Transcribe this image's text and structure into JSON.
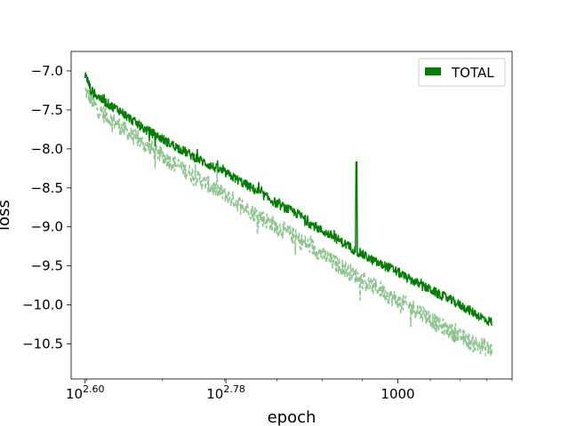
{
  "chart_data": {
    "type": "line",
    "title": "",
    "xlabel": "epoch",
    "ylabel": "loss",
    "xscale": "log",
    "xlim": [
      382,
      1400
    ],
    "ylim": [
      -10.95,
      -6.75
    ],
    "grid": false,
    "legend_placement": "top-right",
    "legend": [
      {
        "label": "TOTAL",
        "color": "#008000"
      }
    ],
    "x_ticks": [
      {
        "value": 398.1,
        "label": "10^2.60",
        "base": "10",
        "exp": "2.60"
      },
      {
        "value": 602.6,
        "label": "10^2.78",
        "base": "10",
        "exp": "2.78"
      },
      {
        "value": 1000,
        "label": "1000",
        "base": "1000",
        "exp": ""
      }
    ],
    "y_ticks": [
      -7.0,
      -7.5,
      -8.0,
      -8.5,
      -9.0,
      -9.5,
      -10.0,
      -10.5
    ],
    "y_tick_labels": [
      "−7.0",
      "−7.5",
      "−8.0",
      "−8.5",
      "−9.0",
      "−9.5",
      "−10.0",
      "−10.5"
    ],
    "series": [
      {
        "name": "TOTAL",
        "style": "solid",
        "color": "#008000",
        "opacity": 1.0,
        "x": [
          398,
          402,
          405,
          410,
          420,
          430,
          440,
          450,
          460,
          475,
          490,
          505,
          520,
          540,
          560,
          580,
          600,
          625,
          650,
          675,
          700,
          725,
          750,
          760,
          770,
          780,
          800,
          825,
          850,
          875,
          900,
          925,
          950,
          975,
          1000,
          1025,
          1050,
          1075,
          1100,
          1125,
          1150,
          1175,
          1200,
          1225,
          1250,
          1275,
          1300,
          1320
        ],
        "y": [
          -7.05,
          -7.15,
          -7.25,
          -7.3,
          -7.38,
          -7.45,
          -7.5,
          -7.58,
          -7.65,
          -7.75,
          -7.82,
          -7.9,
          -7.97,
          -8.06,
          -8.15,
          -8.23,
          -8.3,
          -8.4,
          -8.5,
          -8.6,
          -8.7,
          -8.78,
          -8.85,
          -8.9,
          -8.95,
          -8.98,
          -9.05,
          -9.12,
          -9.2,
          -9.28,
          -9.35,
          -9.42,
          -9.48,
          -9.52,
          -9.58,
          -9.65,
          -9.7,
          -9.76,
          -9.8,
          -9.86,
          -9.9,
          -9.95,
          -10.0,
          -10.05,
          -10.1,
          -10.15,
          -10.2,
          -10.22
        ],
        "noise": 0.06
      },
      {
        "name": "",
        "style": "dashed",
        "color": "#008000",
        "opacity": 0.45,
        "x": [
          398,
          402,
          405,
          410,
          420,
          430,
          440,
          450,
          460,
          475,
          490,
          505,
          520,
          540,
          560,
          580,
          600,
          625,
          650,
          675,
          700,
          725,
          750,
          775,
          800,
          825,
          850,
          875,
          900,
          925,
          950,
          975,
          1000,
          1025,
          1050,
          1075,
          1100,
          1125,
          1150,
          1175,
          1200,
          1225,
          1250,
          1275,
          1300,
          1320
        ],
        "y": [
          -7.25,
          -7.3,
          -7.38,
          -7.45,
          -7.55,
          -7.62,
          -7.7,
          -7.78,
          -7.85,
          -7.95,
          -8.03,
          -8.12,
          -8.2,
          -8.3,
          -8.4,
          -8.5,
          -8.58,
          -8.7,
          -8.8,
          -8.9,
          -9.0,
          -9.08,
          -9.18,
          -9.25,
          -9.35,
          -9.45,
          -9.52,
          -9.6,
          -9.68,
          -9.75,
          -9.8,
          -9.88,
          -9.95,
          -10.0,
          -10.05,
          -10.1,
          -10.18,
          -10.25,
          -10.3,
          -10.35,
          -10.4,
          -10.45,
          -10.5,
          -10.52,
          -10.55,
          -10.58
        ],
        "noise": 0.11
      }
    ]
  }
}
